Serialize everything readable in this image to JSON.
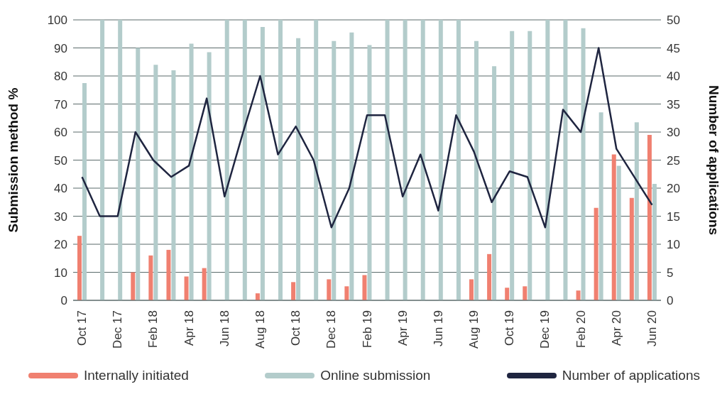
{
  "chart_data": {
    "type": "bar",
    "categories": [
      "Oct 17",
      null,
      "Dec 17",
      null,
      "Feb 18",
      null,
      "Apr 18",
      null,
      "Jun 18",
      null,
      "Aug 18",
      null,
      "Oct 18",
      null,
      "Dec 18",
      null,
      "Feb 19",
      null,
      "Apr 19",
      null,
      "Jun 19",
      null,
      "Aug 19",
      null,
      "Oct 19",
      null,
      "Dec 19",
      null,
      "Feb 20",
      null,
      "Apr 20",
      null,
      "Jun 20"
    ],
    "ylabel": "Submission method %",
    "y2label": "Number of applications",
    "ylim": [
      0,
      100
    ],
    "yticks": [
      0,
      10,
      20,
      30,
      40,
      50,
      60,
      70,
      80,
      90,
      100
    ],
    "y2lim": [
      0,
      50
    ],
    "y2ticks": [
      0,
      5,
      10,
      15,
      20,
      25,
      30,
      35,
      40,
      45,
      50
    ],
    "grid": "y",
    "legend": "bottom",
    "series": [
      {
        "name": "Internally initiated",
        "color": "#f08070",
        "values": [
          23,
          0,
          0,
          10,
          16,
          18,
          8.5,
          11.5,
          0,
          0,
          2.5,
          0,
          6.5,
          0,
          7.5,
          5,
          9,
          0,
          0,
          0,
          0,
          0,
          7.5,
          16.5,
          4.5,
          5,
          0,
          0,
          3.5,
          33,
          52,
          36.5,
          59
        ]
      },
      {
        "name": "Online submission",
        "color": "#b3cccb",
        "values": [
          77.5,
          100,
          100,
          90,
          84,
          82,
          91.5,
          88.5,
          100,
          100,
          97.5,
          100,
          93.5,
          100,
          92.5,
          95.5,
          91,
          100,
          100,
          100,
          100,
          100,
          92.5,
          83.5,
          96,
          96,
          100,
          100,
          97,
          67,
          48,
          63.5,
          41.5
        ]
      },
      {
        "name": "Number of applications",
        "type": "line",
        "axis": "y2",
        "color": "#1f2540",
        "values": [
          22,
          15,
          15,
          30,
          25,
          22,
          24,
          36,
          18.5,
          29.5,
          40,
          26,
          31,
          25,
          13,
          20,
          33,
          33,
          18.5,
          26,
          16,
          33,
          26.5,
          17.5,
          23,
          22,
          13,
          34,
          30,
          45,
          27,
          22,
          17
        ]
      }
    ]
  }
}
